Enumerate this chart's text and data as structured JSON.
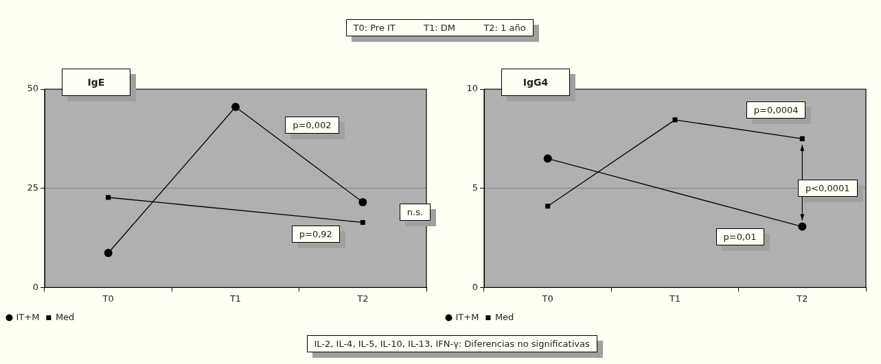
{
  "chart_data": [
    {
      "type": "line",
      "title": "IgE",
      "categories": [
        "T0",
        "T1",
        "T2"
      ],
      "series": [
        {
          "name": "IT+M",
          "color": "#000000",
          "marker": "circle",
          "values": [
            8.7,
            45.5,
            21.5
          ]
        },
        {
          "name": "Med",
          "color": "#000000",
          "marker": "square",
          "values": [
            22.7,
            null,
            16.4
          ]
        }
      ],
      "ylim": [
        0,
        50
      ],
      "yticks": [
        0,
        25,
        50
      ],
      "grid": "y",
      "legend": "bottom left",
      "annotations": [
        "T0: Pre IT          T1: DM          T2: 1 año",
        "p=0,002",
        "p=0,92",
        "n.s."
      ]
    },
    {
      "type": "line",
      "title": "IgG4",
      "categories": [
        "T0",
        "T1",
        "T2"
      ],
      "series": [
        {
          "name": "IT+M",
          "color": "#000000",
          "marker": "circle",
          "values": [
            6.5,
            null,
            3.07
          ]
        },
        {
          "name": "Med",
          "color": "#000000",
          "marker": "square",
          "values": [
            4.1,
            8.45,
            7.5
          ]
        }
      ],
      "ylim": [
        0,
        10
      ],
      "yticks": [
        0,
        5,
        10
      ],
      "grid": "y",
      "legend": "bottom left",
      "annotations": [
        "p=0,0004",
        "p<0,0001",
        "p=0,01",
        "IL-2, IL-4, IL-5, IL-10, IL-13, IFN-γ: Diferencias no significativas"
      ]
    }
  ]
}
